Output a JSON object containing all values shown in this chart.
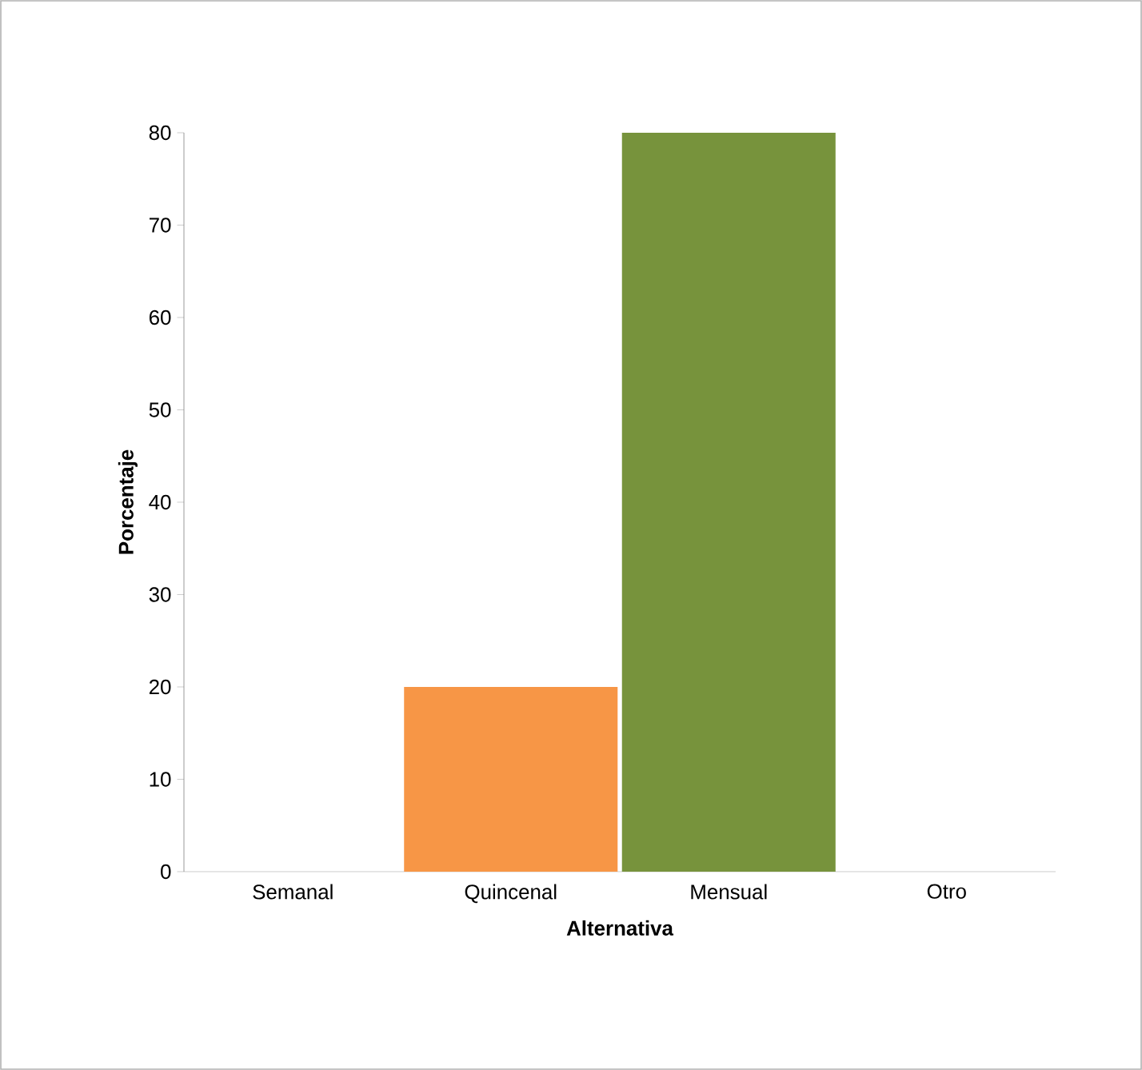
{
  "chart_data": {
    "type": "bar",
    "xlabel": "Alternativa",
    "ylabel": "Porcentaje",
    "categories": [
      "Semanal",
      "Quincenal",
      "Mensual",
      "Otro"
    ],
    "values": [
      0,
      20,
      80,
      0
    ],
    "colors": [
      "#772c2a",
      "#f79646",
      "#77933c",
      "#4f81bd"
    ],
    "ylim": [
      0,
      80
    ],
    "yticks": [
      0,
      10,
      20,
      30,
      40,
      50,
      60,
      70,
      80
    ],
    "grid": false
  }
}
